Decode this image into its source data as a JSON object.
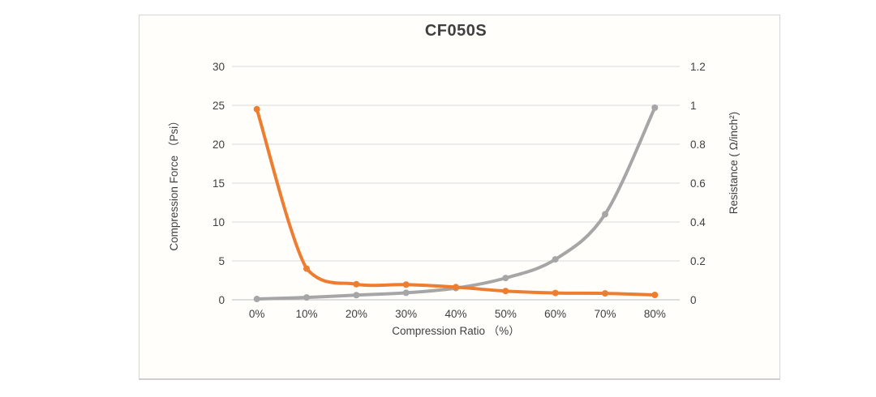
{
  "page": {
    "background": "#ffffff"
  },
  "card": {
    "background": "#fffefa",
    "border_color": "#d6d6d4"
  },
  "chart_data": {
    "type": "line",
    "title": "CF050S",
    "xlabel": "Compression Ratio （%）",
    "ylabel_left": "Compression Force （Psi）",
    "ylabel_right": "Resistance ( Ω/inch²)",
    "categories": [
      "0%",
      "10%",
      "20%",
      "30%",
      "40%",
      "50%",
      "60%",
      "70%",
      "80%"
    ],
    "series": [
      {
        "key": "compression-force",
        "name": "Compression Force",
        "axis": "left",
        "color": "#A6A6A6",
        "values": [
          0.1,
          0.3,
          0.6,
          0.9,
          1.5,
          2.8,
          5.2,
          11.0,
          24.7
        ]
      },
      {
        "key": "resistance",
        "name": "Resistance",
        "axis": "right",
        "color": "#ED7D31",
        "values": [
          0.98,
          0.16,
          0.08,
          0.078,
          0.065,
          0.045,
          0.035,
          0.033,
          0.025
        ]
      }
    ],
    "left_axis": {
      "min": 0,
      "max": 30,
      "ticks": [
        "0",
        "5",
        "10",
        "15",
        "20",
        "25",
        "30"
      ]
    },
    "right_axis": {
      "min": 0,
      "max": 1.2,
      "ticks": [
        "0",
        "0.2",
        "0.4",
        "0.6",
        "0.8",
        "1",
        "1.2"
      ]
    },
    "grid": true,
    "legend": "none",
    "line_width": 4,
    "marker_radius": 4,
    "colors": {
      "grid": "#D9D9D9",
      "axis_line": "#BFBFBF",
      "text": "#404040"
    }
  }
}
